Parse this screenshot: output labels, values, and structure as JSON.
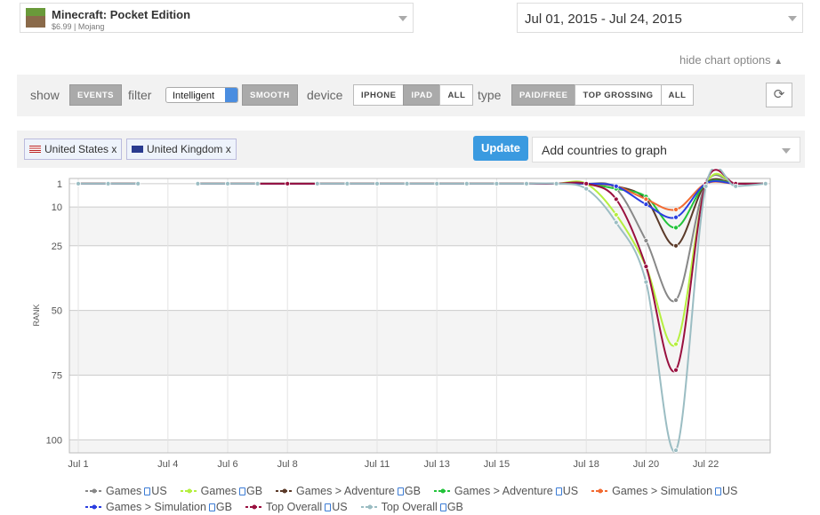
{
  "app": {
    "title": "Minecraft: Pocket Edition",
    "subtitle": "$6.99 | Mojang"
  },
  "date_range": "Jul 01, 2015 - Jul 24, 2015",
  "hide_options": "hide chart options",
  "toolbar": {
    "show_label": "show",
    "events": "EVENTS",
    "filter_label": "filter",
    "filter_value": "Intelligent",
    "smooth": "SMOOTH",
    "device_label": "device",
    "devices": [
      "IPHONE",
      "IPAD",
      "ALL"
    ],
    "type_label": "type",
    "types": [
      "PAID/FREE",
      "TOP GROSSING",
      "ALL"
    ]
  },
  "countries": [
    "United States x",
    "United Kingdom x"
  ],
  "update": "Update",
  "add_countries": "Add countries to graph",
  "chart_data": {
    "type": "line",
    "y_label": "RANK",
    "y_reversed": true,
    "categories": [
      "Jul 1",
      null,
      null,
      "Jul 4",
      null,
      "Jul 6",
      null,
      "Jul 8",
      null,
      null,
      "Jul 11",
      null,
      "Jul 13",
      null,
      "Jul 15",
      null,
      null,
      "Jul 18",
      null,
      "Jul 20",
      null,
      "Jul 22",
      null,
      null
    ],
    "ylim": [
      105,
      -1
    ],
    "yticks": [
      1,
      10,
      25,
      50,
      75,
      100
    ],
    "series": [
      {
        "name": "Games",
        "country": "US",
        "color": "#888888",
        "values": [
          1,
          1,
          1,
          null,
          1,
          1,
          1,
          1,
          1,
          1,
          1,
          1,
          1,
          1,
          1,
          1,
          1,
          1,
          3,
          23,
          46,
          1,
          1,
          1
        ]
      },
      {
        "name": "Games",
        "country": "GB",
        "color": "#b5ef3f",
        "values": [
          1,
          1,
          1,
          null,
          1,
          1,
          1,
          1,
          1,
          1,
          1,
          1,
          1,
          1,
          1,
          1,
          1,
          1,
          13,
          33,
          63,
          2,
          1,
          1
        ]
      },
      {
        "name": "Games > Adventure",
        "country": "GB",
        "color": "#5b3a29",
        "values": [
          1,
          1,
          1,
          null,
          1,
          1,
          1,
          1,
          1,
          1,
          1,
          1,
          1,
          1,
          1,
          1,
          1,
          1,
          2,
          7,
          25,
          1,
          1,
          1
        ]
      },
      {
        "name": "Games > Adventure",
        "country": "US",
        "color": "#22c33a",
        "values": [
          1,
          1,
          1,
          null,
          1,
          1,
          1,
          1,
          1,
          1,
          1,
          1,
          1,
          1,
          1,
          1,
          1,
          1,
          3,
          6,
          18,
          1,
          1,
          1
        ]
      },
      {
        "name": "Games > Simulation",
        "country": "US",
        "color": "#f26b32",
        "values": [
          1,
          1,
          1,
          null,
          1,
          1,
          1,
          1,
          1,
          1,
          1,
          1,
          1,
          1,
          1,
          1,
          1,
          1,
          2,
          7,
          11,
          1,
          1,
          1
        ]
      },
      {
        "name": "Games > Simulation",
        "country": "GB",
        "color": "#2b3ee0",
        "values": [
          1,
          1,
          1,
          null,
          1,
          1,
          1,
          1,
          1,
          1,
          1,
          1,
          1,
          1,
          1,
          1,
          1,
          1,
          2,
          9,
          14,
          1,
          1,
          1
        ]
      },
      {
        "name": "Top Overall",
        "country": "US",
        "color": "#99103f",
        "values": [
          1,
          1,
          1,
          null,
          1,
          1,
          1,
          1,
          1,
          1,
          1,
          1,
          1,
          1,
          1,
          1,
          1,
          1,
          7,
          33,
          73,
          1,
          1,
          1
        ]
      },
      {
        "name": "Top Overall",
        "country": "GB",
        "color": "#9bbdc3",
        "values": [
          1,
          1,
          1,
          null,
          1,
          1,
          1,
          null,
          1,
          1,
          1,
          1,
          1,
          1,
          1,
          1,
          1,
          3,
          16,
          39,
          104,
          2,
          2,
          1
        ]
      }
    ]
  }
}
